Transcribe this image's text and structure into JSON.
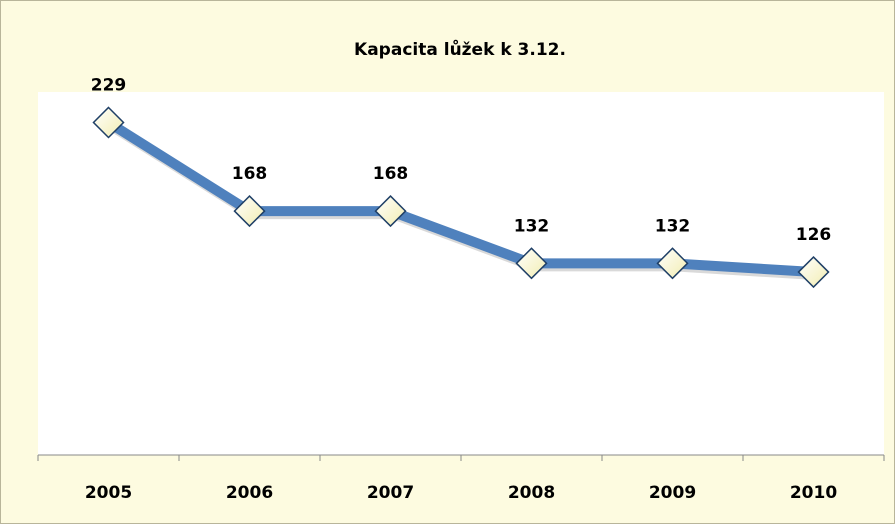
{
  "chart_data": {
    "type": "line",
    "title": "Kapacita lůžek k 3.12.",
    "categories": [
      "2005",
      "2006",
      "2007",
      "2008",
      "2009",
      "2010"
    ],
    "values": [
      229,
      168,
      168,
      132,
      132,
      126
    ],
    "color": "#4f81bd",
    "ylim": [
      0,
      250
    ]
  }
}
